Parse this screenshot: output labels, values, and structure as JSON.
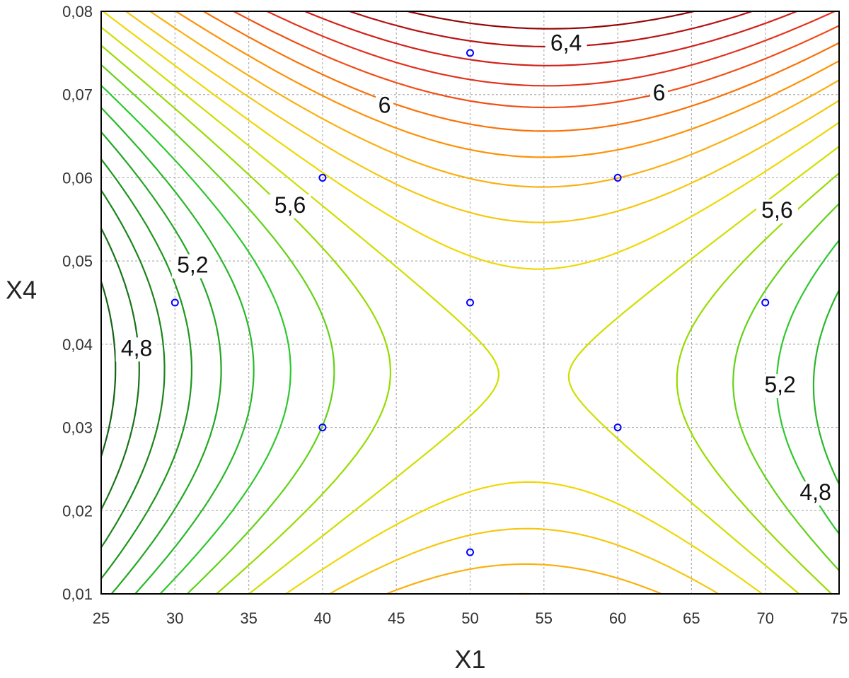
{
  "chart_data": {
    "type": "contour",
    "xlabel": "X1",
    "ylabel": "X4",
    "xlim": [
      25,
      75
    ],
    "ylim": [
      0.01,
      0.08
    ],
    "x_ticks": [
      "25",
      "30",
      "35",
      "40",
      "45",
      "50",
      "55",
      "60",
      "65",
      "70",
      "75"
    ],
    "y_ticks": [
      "0,01",
      "0,02",
      "0,03",
      "0,04",
      "0,05",
      "0,06",
      "0,07",
      "0,08"
    ],
    "grid": true,
    "contour_levels": [
      4.6,
      4.7,
      4.8,
      4.9,
      5.0,
      5.1,
      5.2,
      5.3,
      5.4,
      5.5,
      5.6,
      5.7,
      5.8,
      5.9,
      6.0,
      6.1,
      6.2,
      6.3,
      6.4,
      6.5
    ],
    "contour_labels": [
      {
        "text": "6,4",
        "x": 56.5,
        "y": 0.0753
      },
      {
        "text": "6",
        "x": 44.2,
        "y": 0.0678
      },
      {
        "text": "6",
        "x": 62.8,
        "y": 0.0693
      },
      {
        "text": "5,6",
        "x": 37.8,
        "y": 0.0558
      },
      {
        "text": "5,6",
        "x": 70.8,
        "y": 0.0552
      },
      {
        "text": "5,2",
        "x": 31.2,
        "y": 0.0486
      },
      {
        "text": "5,2",
        "x": 71.0,
        "y": 0.0342
      },
      {
        "text": "4,8",
        "x": 27.4,
        "y": 0.0386
      },
      {
        "text": "4,8",
        "x": 73.4,
        "y": 0.0213
      }
    ],
    "points": [
      {
        "x": 50,
        "y": 0.075
      },
      {
        "x": 40,
        "y": 0.06
      },
      {
        "x": 60,
        "y": 0.06
      },
      {
        "x": 30,
        "y": 0.045
      },
      {
        "x": 50,
        "y": 0.045
      },
      {
        "x": 70,
        "y": 0.045
      },
      {
        "x": 40,
        "y": 0.03
      },
      {
        "x": 60,
        "y": 0.03
      },
      {
        "x": 50,
        "y": 0.015
      }
    ],
    "colors": {
      "low": "#1e6e1e",
      "mid_green": "#2ec32e",
      "yellow_green": "#c8e600",
      "yellow": "#f0d200",
      "orange": "#ff8c00",
      "red": "#e02020",
      "dark_red": "#8b0000",
      "points": "#0000ff",
      "grid": "#b0b0b0",
      "frame": "#000000"
    }
  }
}
